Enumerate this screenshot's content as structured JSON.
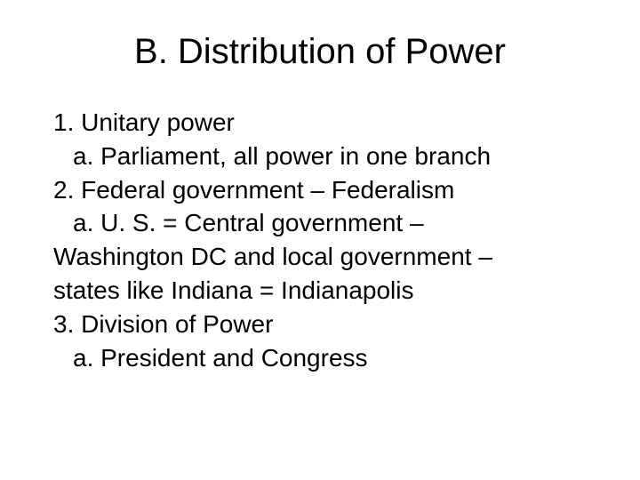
{
  "slide": {
    "title": "B. Distribution of Power",
    "lines": [
      {
        "text": "1. Unitary power",
        "indent": false
      },
      {
        "text": "a. Parliament, all power in one branch",
        "indent": true
      },
      {
        "text": "2. Federal government – Federalism",
        "indent": false
      },
      {
        "text": "a. U. S. = Central government –",
        "indent": true
      },
      {
        "text": "Washington DC and local government –",
        "indent": false
      },
      {
        "text": "states like Indiana = Indianapolis",
        "indent": false
      },
      {
        "text": "3. Division of Power",
        "indent": false
      },
      {
        "text": "a. President and Congress",
        "indent": true
      }
    ],
    "style": {
      "background_color": "#ffffff",
      "title_fontsize": 40,
      "title_color": "#000000",
      "body_fontsize": 28,
      "body_color": "#000000",
      "font_family": "Arial"
    }
  }
}
